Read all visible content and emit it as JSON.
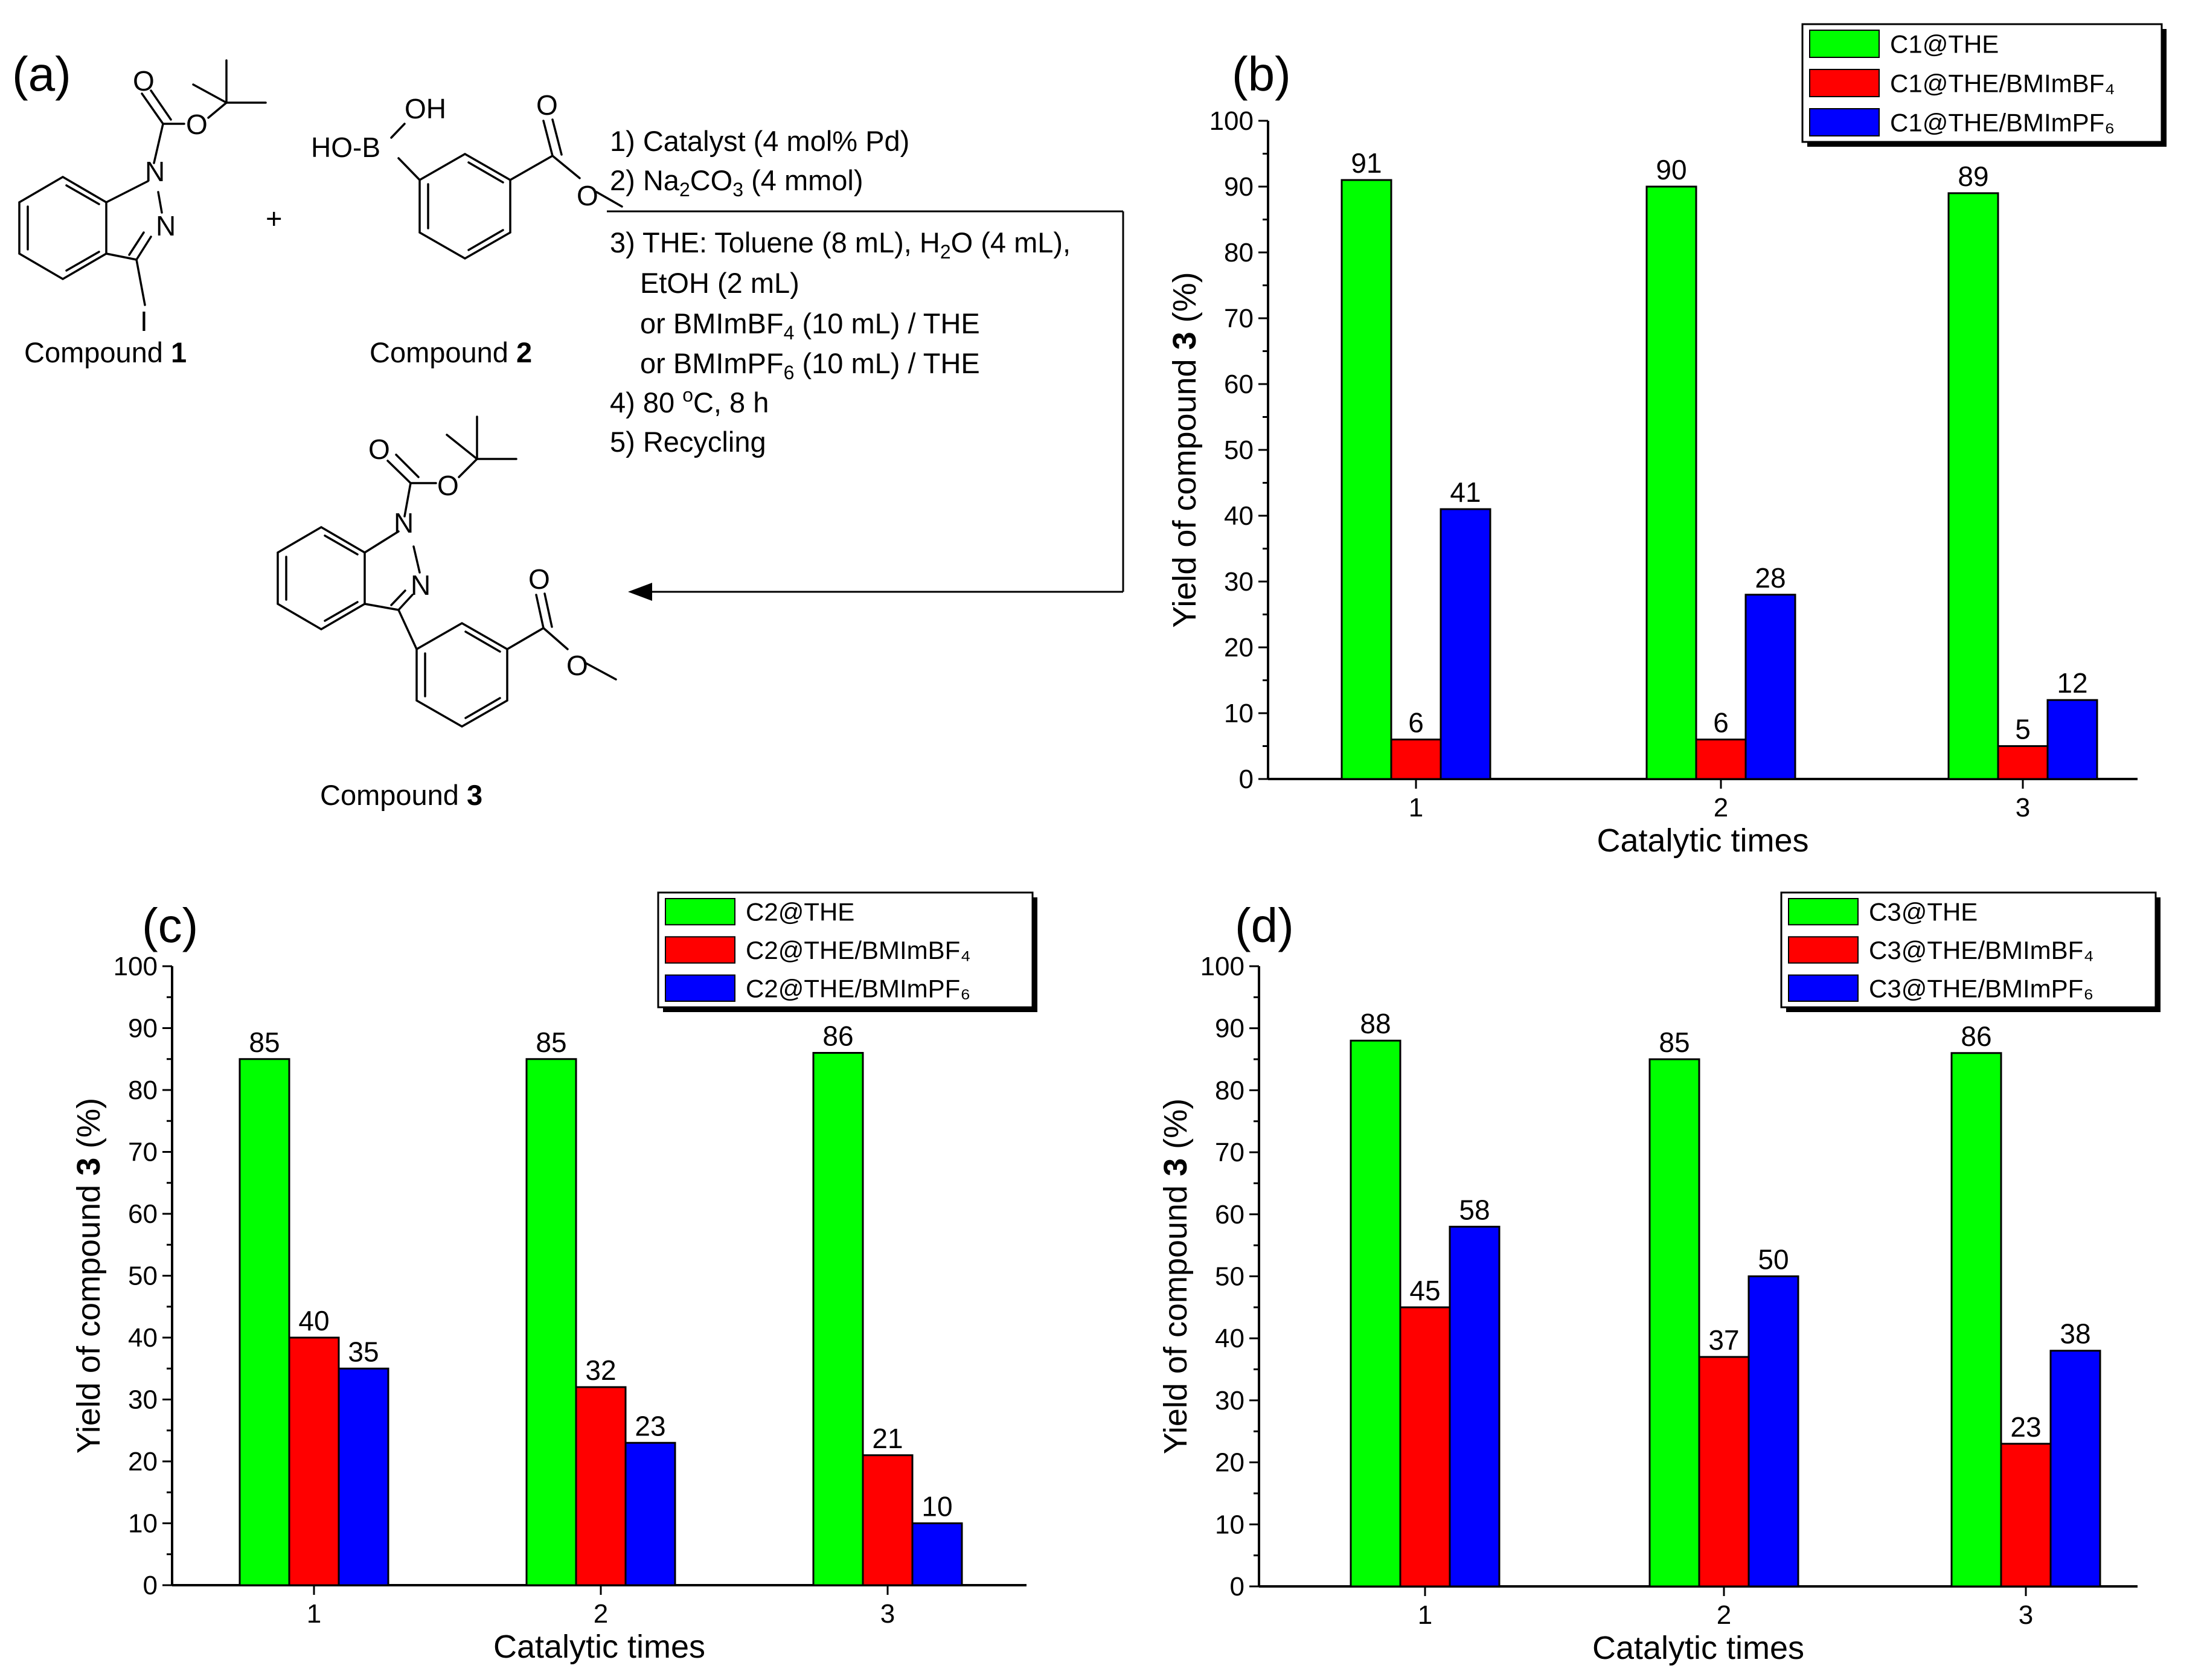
{
  "panels": {
    "a": "(a)",
    "b": "(b)",
    "c": "(c)",
    "d": "(d)"
  },
  "scheme": {
    "compound1_label": "Compound ",
    "compound1_num": "1",
    "compound2_label": "Compound ",
    "compound2_num": "2",
    "compound3_label": "Compound ",
    "compound3_num": "3",
    "plus": "+",
    "conditions": {
      "c1": "1) Catalyst (4 mol% Pd)",
      "c2_a": "2) Na",
      "c2_b": "2",
      "c2_c": "CO",
      "c2_d": "3",
      "c2_e": " (4 mmol)",
      "c3_a": "3) THE: Toluene (8 mL), H",
      "c3_b": "2",
      "c3_c": "O (4 mL),",
      "c3_line2": "EtOH (2 mL)",
      "c3_line3_a": "or BMImBF",
      "c3_line3_b": "4",
      "c3_line3_c": " (10 mL) / THE",
      "c3_line4_a": "or BMImPF",
      "c3_line4_b": "6",
      "c3_line4_c": " (10 mL) / THE",
      "c4_a": "4) 80 ",
      "c4_b": "o",
      "c4_c": "C, 8 h",
      "c5": "5) Recycling"
    },
    "atoms": {
      "O": "O",
      "N": "N",
      "I": "I",
      "OH": "OH",
      "HO_B": "HO-B"
    }
  },
  "colors": {
    "green": "#00ff00",
    "red": "#ff0000",
    "blue": "#0000ff"
  },
  "chart_data": [
    {
      "id": "b",
      "type": "bar",
      "categories": [
        "1",
        "2",
        "3"
      ],
      "series": [
        {
          "name": "C1@THE",
          "values": [
            91,
            90,
            89
          ]
        },
        {
          "name": "C1@THE/BMImBF₄",
          "values": [
            6,
            6,
            5
          ]
        },
        {
          "name": "C1@THE/BMImPF₆",
          "values": [
            41,
            28,
            12
          ]
        }
      ],
      "xlabel": "Catalytic times",
      "ylabel_pre": "Yield of compound ",
      "ylabel_bold": "3",
      "ylabel_post": " (%)",
      "ylim": [
        0,
        100
      ],
      "yticks": [
        "0",
        "10",
        "20",
        "30",
        "40",
        "50",
        "60",
        "70",
        "80",
        "90",
        "100"
      ]
    },
    {
      "id": "c",
      "type": "bar",
      "categories": [
        "1",
        "2",
        "3"
      ],
      "series": [
        {
          "name": "C2@THE",
          "values": [
            85,
            85,
            86
          ]
        },
        {
          "name": "C2@THE/BMImBF₄",
          "values": [
            40,
            32,
            21
          ]
        },
        {
          "name": "C2@THE/BMImPF₆",
          "values": [
            35,
            23,
            10
          ]
        }
      ],
      "xlabel": "Catalytic times",
      "ylabel_pre": "Yield of compound ",
      "ylabel_bold": "3",
      "ylabel_post": " (%)",
      "ylim": [
        0,
        100
      ],
      "yticks": [
        "0",
        "10",
        "20",
        "30",
        "40",
        "50",
        "60",
        "70",
        "80",
        "90",
        "100"
      ]
    },
    {
      "id": "d",
      "type": "bar",
      "categories": [
        "1",
        "2",
        "3"
      ],
      "series": [
        {
          "name": "C3@THE",
          "values": [
            88,
            85,
            86
          ]
        },
        {
          "name": "C3@THE/BMImBF₄",
          "values": [
            45,
            37,
            23
          ]
        },
        {
          "name": "C3@THE/BMImPF₆",
          "values": [
            58,
            50,
            38
          ]
        }
      ],
      "xlabel": "Catalytic times",
      "ylabel_pre": "Yield of compound ",
      "ylabel_bold": "3",
      "ylabel_post": " (%)",
      "ylim": [
        0,
        100
      ],
      "yticks": [
        "0",
        "10",
        "20",
        "30",
        "40",
        "50",
        "60",
        "70",
        "80",
        "90",
        "100"
      ]
    }
  ]
}
